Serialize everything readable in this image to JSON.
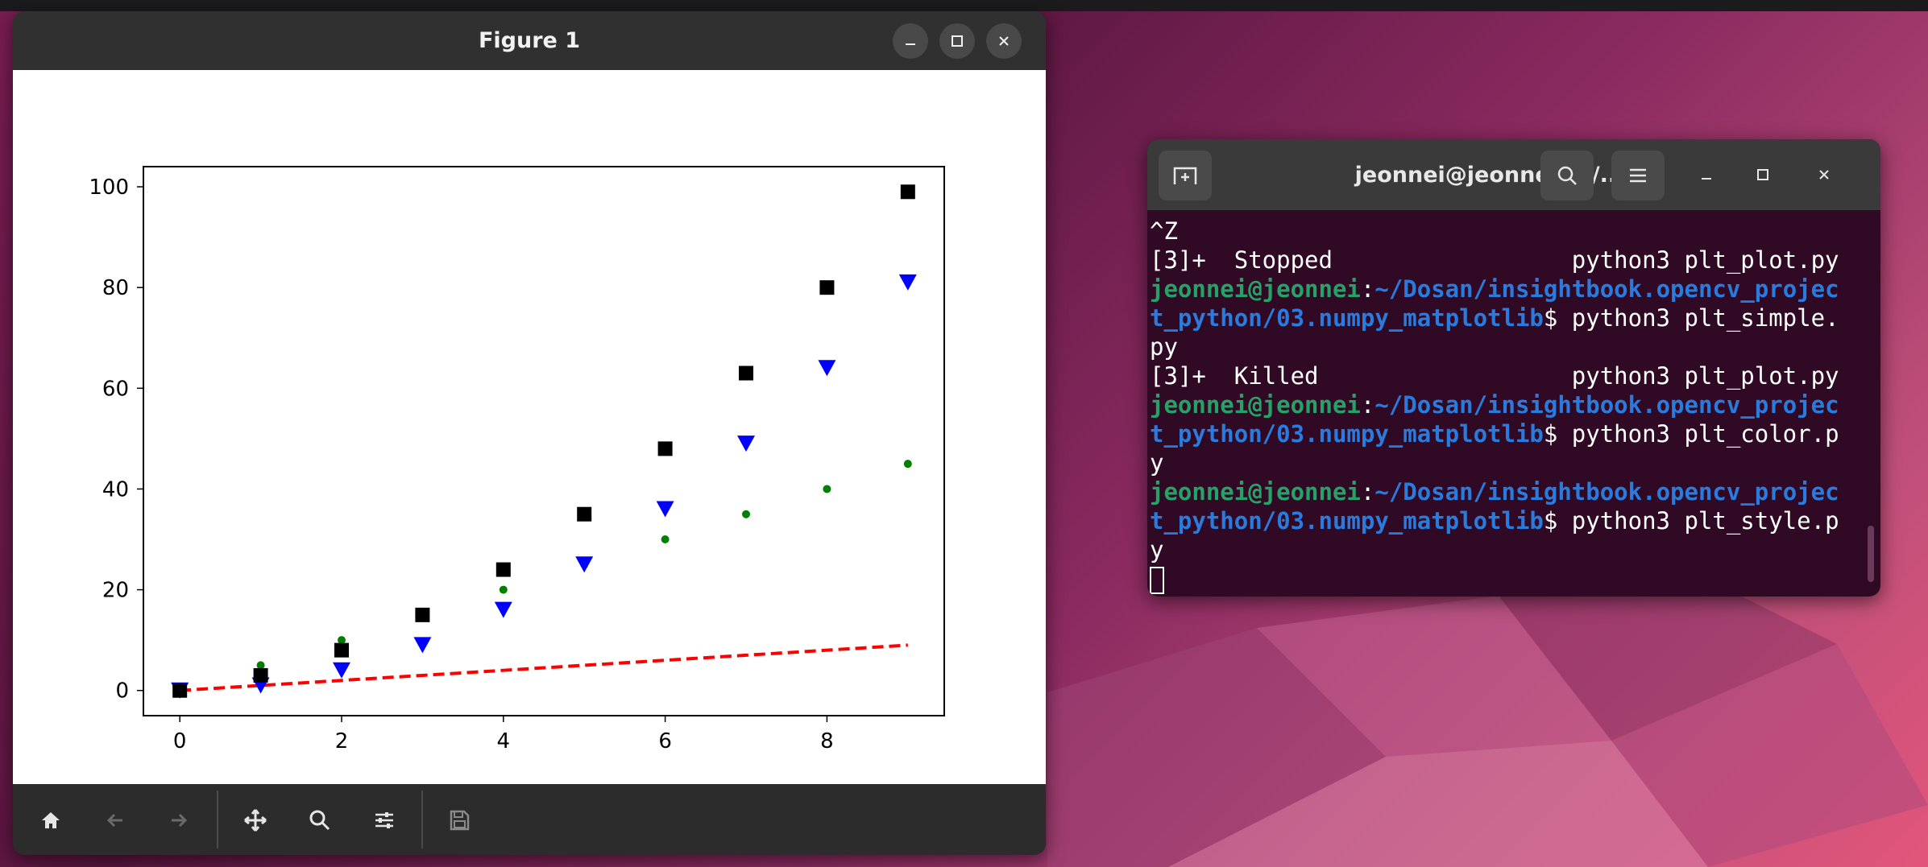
{
  "figure_window": {
    "title": "Figure 1",
    "toolbar": [
      "home-icon",
      "back-icon",
      "forward-icon",
      "pan-icon",
      "zoom-icon",
      "configure-subplots-icon",
      "save-icon"
    ]
  },
  "chart_data": {
    "type": "scatter",
    "title": "",
    "xlabel": "",
    "ylabel": "",
    "xlim": [
      -0.45,
      9.45
    ],
    "ylim": [
      -5,
      104
    ],
    "xticks": [
      0,
      2,
      4,
      6,
      8
    ],
    "yticks": [
      0,
      20,
      40,
      60,
      80,
      100
    ],
    "grid": false,
    "series": [
      {
        "style": "red dashed line",
        "color": "#ff0000",
        "marker": "none",
        "line": "dashed",
        "x": [
          0,
          1,
          2,
          3,
          4,
          5,
          6,
          7,
          8,
          9
        ],
        "y": [
          0,
          1,
          2,
          3,
          4,
          5,
          6,
          7,
          8,
          9
        ]
      },
      {
        "style": "green circles",
        "color": "#008000",
        "marker": "circle",
        "x": [
          0,
          1,
          2,
          3,
          4,
          5,
          6,
          7,
          8,
          9
        ],
        "y": [
          0,
          5,
          10,
          15,
          20,
          25,
          30,
          35,
          40,
          45
        ]
      },
      {
        "style": "blue triangles",
        "color": "#0000ff",
        "marker": "triangle-down",
        "x": [
          0,
          1,
          2,
          3,
          4,
          5,
          6,
          7,
          8,
          9
        ],
        "y": [
          0,
          1,
          4,
          9,
          16,
          25,
          36,
          49,
          64,
          81
        ]
      },
      {
        "style": "black squares",
        "color": "#000000",
        "marker": "square",
        "x": [
          0,
          1,
          2,
          3,
          4,
          5,
          6,
          7,
          8,
          9
        ],
        "y": [
          0,
          3,
          8,
          15,
          24,
          35,
          48,
          63,
          80,
          99
        ]
      }
    ]
  },
  "terminal": {
    "title": "jeonnei@jeonnei: ~/...",
    "lines": [
      [
        {
          "t": "^Z",
          "c": "plain"
        }
      ],
      [
        {
          "t": "[3]+  Stopped                 python3 plt_plot.py",
          "c": "plain"
        }
      ],
      [
        {
          "t": "jeonnei@jeonnei",
          "c": "user"
        },
        {
          "t": ":",
          "c": "plain"
        },
        {
          "t": "~/Dosan/insightbook.opencv_projec",
          "c": "path"
        }
      ],
      [
        {
          "t": "t_python/03.numpy_matplotlib",
          "c": "path"
        },
        {
          "t": "$ python3 plt_simple.",
          "c": "plain"
        }
      ],
      [
        {
          "t": "py",
          "c": "plain"
        }
      ],
      [
        {
          "t": "[3]+  Killed                  python3 plt_plot.py",
          "c": "plain"
        }
      ],
      [
        {
          "t": "jeonnei@jeonnei",
          "c": "user"
        },
        {
          "t": ":",
          "c": "plain"
        },
        {
          "t": "~/Dosan/insightbook.opencv_projec",
          "c": "path"
        }
      ],
      [
        {
          "t": "t_python/03.numpy_matplotlib",
          "c": "path"
        },
        {
          "t": "$ python3 plt_color.p",
          "c": "plain"
        }
      ],
      [
        {
          "t": "y",
          "c": "plain"
        }
      ],
      [
        {
          "t": "jeonnei@jeonnei",
          "c": "user"
        },
        {
          "t": ":",
          "c": "plain"
        },
        {
          "t": "~/Dosan/insightbook.opencv_projec",
          "c": "path"
        }
      ],
      [
        {
          "t": "t_python/03.numpy_matplotlib",
          "c": "path"
        },
        {
          "t": "$ python3 plt_style.p",
          "c": "plain"
        }
      ],
      [
        {
          "t": "y",
          "c": "plain"
        }
      ]
    ]
  }
}
